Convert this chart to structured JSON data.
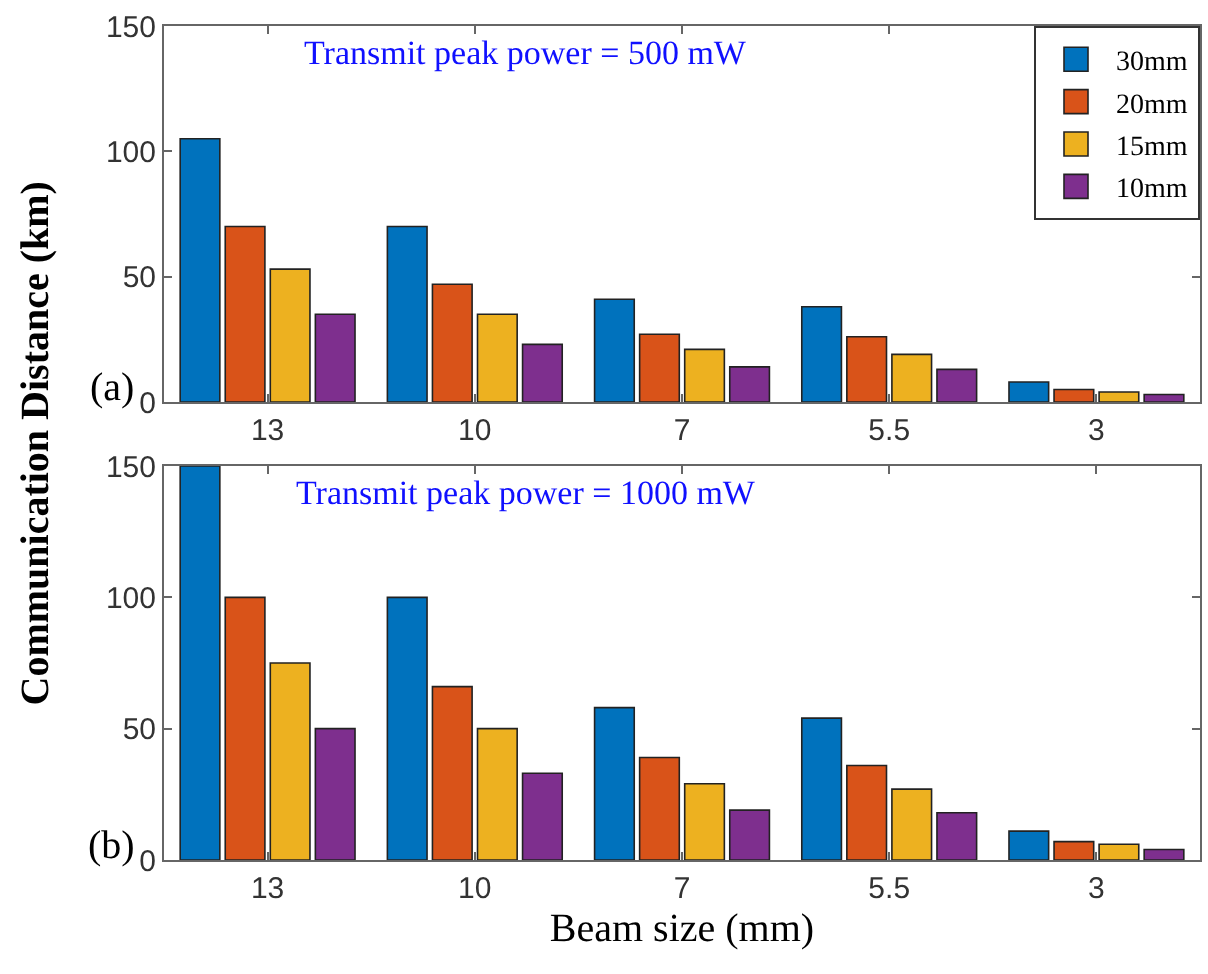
{
  "chart_data": [
    {
      "type": "bar",
      "ylabel": "Communication Distance (km)",
      "categories": [
        "13",
        "10",
        "7",
        "5.5",
        "3"
      ],
      "ylim": [
        0,
        150
      ],
      "yticks": [
        0,
        50,
        100,
        150
      ],
      "legend": "top right",
      "annotations": [
        "Transmit peak power = 500 mW",
        "(a)"
      ],
      "series": [
        {
          "name": "30mm",
          "color": "#0072bd",
          "values": [
            105,
            70,
            41,
            38,
            8
          ]
        },
        {
          "name": "20mm",
          "color": "#d95319",
          "values": [
            70,
            47,
            27,
            26,
            5
          ]
        },
        {
          "name": "15mm",
          "color": "#edb120",
          "values": [
            53,
            35,
            21,
            19,
            4
          ]
        },
        {
          "name": "10mm",
          "color": "#7e2f8e",
          "values": [
            35,
            23,
            14,
            13,
            3
          ]
        }
      ]
    },
    {
      "type": "bar",
      "xlabel": "Beam size (mm)",
      "categories": [
        "13",
        "10",
        "7",
        "5.5",
        "3"
      ],
      "ylim": [
        0,
        150
      ],
      "yticks": [
        0,
        50,
        100,
        150
      ],
      "annotations": [
        "Transmit peak power = 1000 mW",
        "(b)"
      ],
      "series": [
        {
          "color": "#0072bd",
          "values": [
            150,
            100,
            58,
            54,
            11
          ]
        },
        {
          "color": "#d95319",
          "values": [
            100,
            66,
            39,
            36,
            7
          ]
        },
        {
          "color": "#edb120",
          "values": [
            75,
            50,
            29,
            27,
            6
          ]
        },
        {
          "color": "#7e2f8e",
          "values": [
            50,
            33,
            19,
            18,
            4
          ]
        }
      ]
    }
  ]
}
